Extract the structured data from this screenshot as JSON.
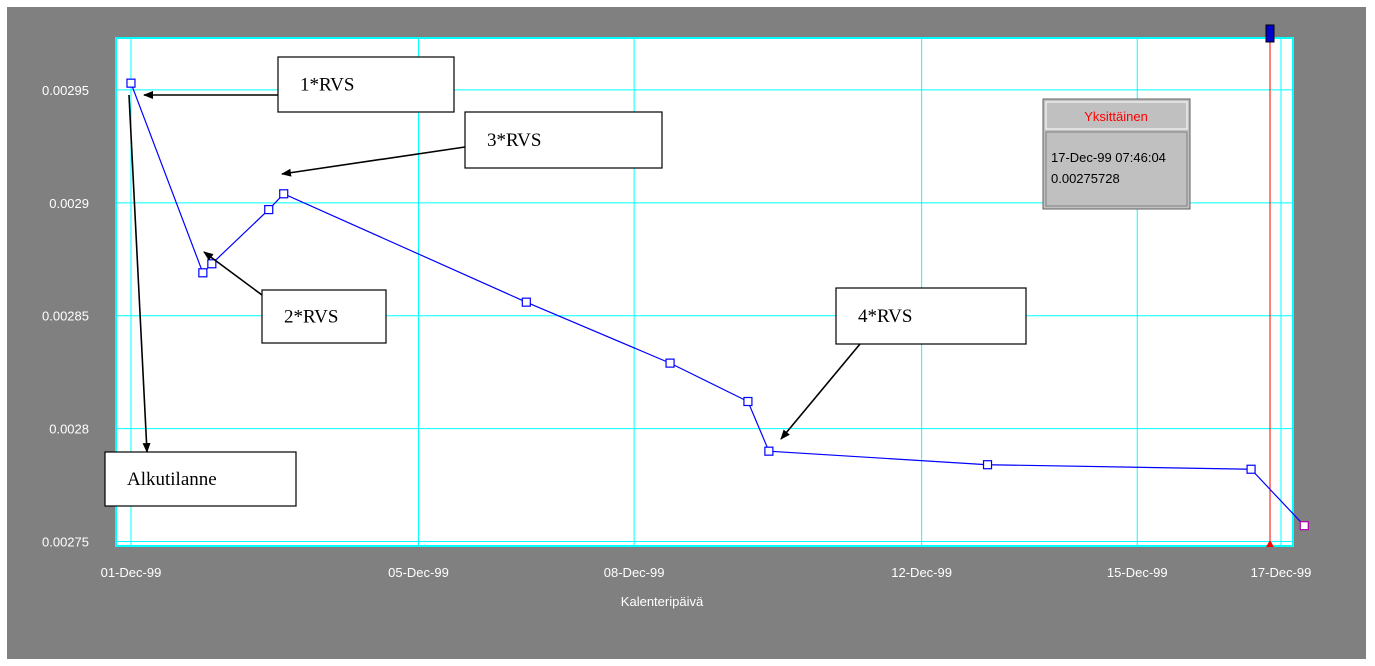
{
  "chart_data": {
    "type": "line",
    "xlabel": "Kalenteripäivä",
    "ylabel": "",
    "x_ticks": [
      "01-Dec-99",
      "05-Dec-99",
      "08-Dec-99",
      "12-Dec-99",
      "15-Dec-99",
      "17-Dec-99"
    ],
    "y_ticks": [
      "0.00275",
      "0.0028",
      "0.00285",
      "0.0029",
      "0.00295"
    ],
    "ylim": [
      0.002748,
      0.002973
    ],
    "xlim": [
      "1999-11-30T19:00",
      "1999-12-17T04:00"
    ],
    "grid": true,
    "series": [
      {
        "color": "#0000ff",
        "x": [
          "1999-12-01T00:00",
          "1999-12-02T00:00",
          "1999-12-02T03:00",
          "1999-12-02T22:00",
          "1999-12-03T03:00",
          "1999-12-06T12:00",
          "1999-12-08T12:00",
          "1999-12-09T14:00",
          "1999-12-09T21:00",
          "1999-12-12T22:00",
          "1999-12-16T14:00",
          "1999-12-17T07:46"
        ],
        "y": [
          0.002953,
          0.002869,
          0.002873,
          0.002897,
          0.002904,
          0.002856,
          0.002829,
          0.002812,
          0.00279,
          0.002784,
          0.002782,
          0.002757
        ]
      }
    ],
    "annotations": [
      {
        "label": "1*RVS"
      },
      {
        "label": "3*RVS"
      },
      {
        "label": "2*RVS"
      },
      {
        "label": "4*RVS"
      },
      {
        "label": "Alkutilanne"
      }
    ],
    "tooltip": {
      "title": "Yksittäinen",
      "line1": "17-Dec-99 07:46:04",
      "line2": "0.00275728"
    }
  }
}
